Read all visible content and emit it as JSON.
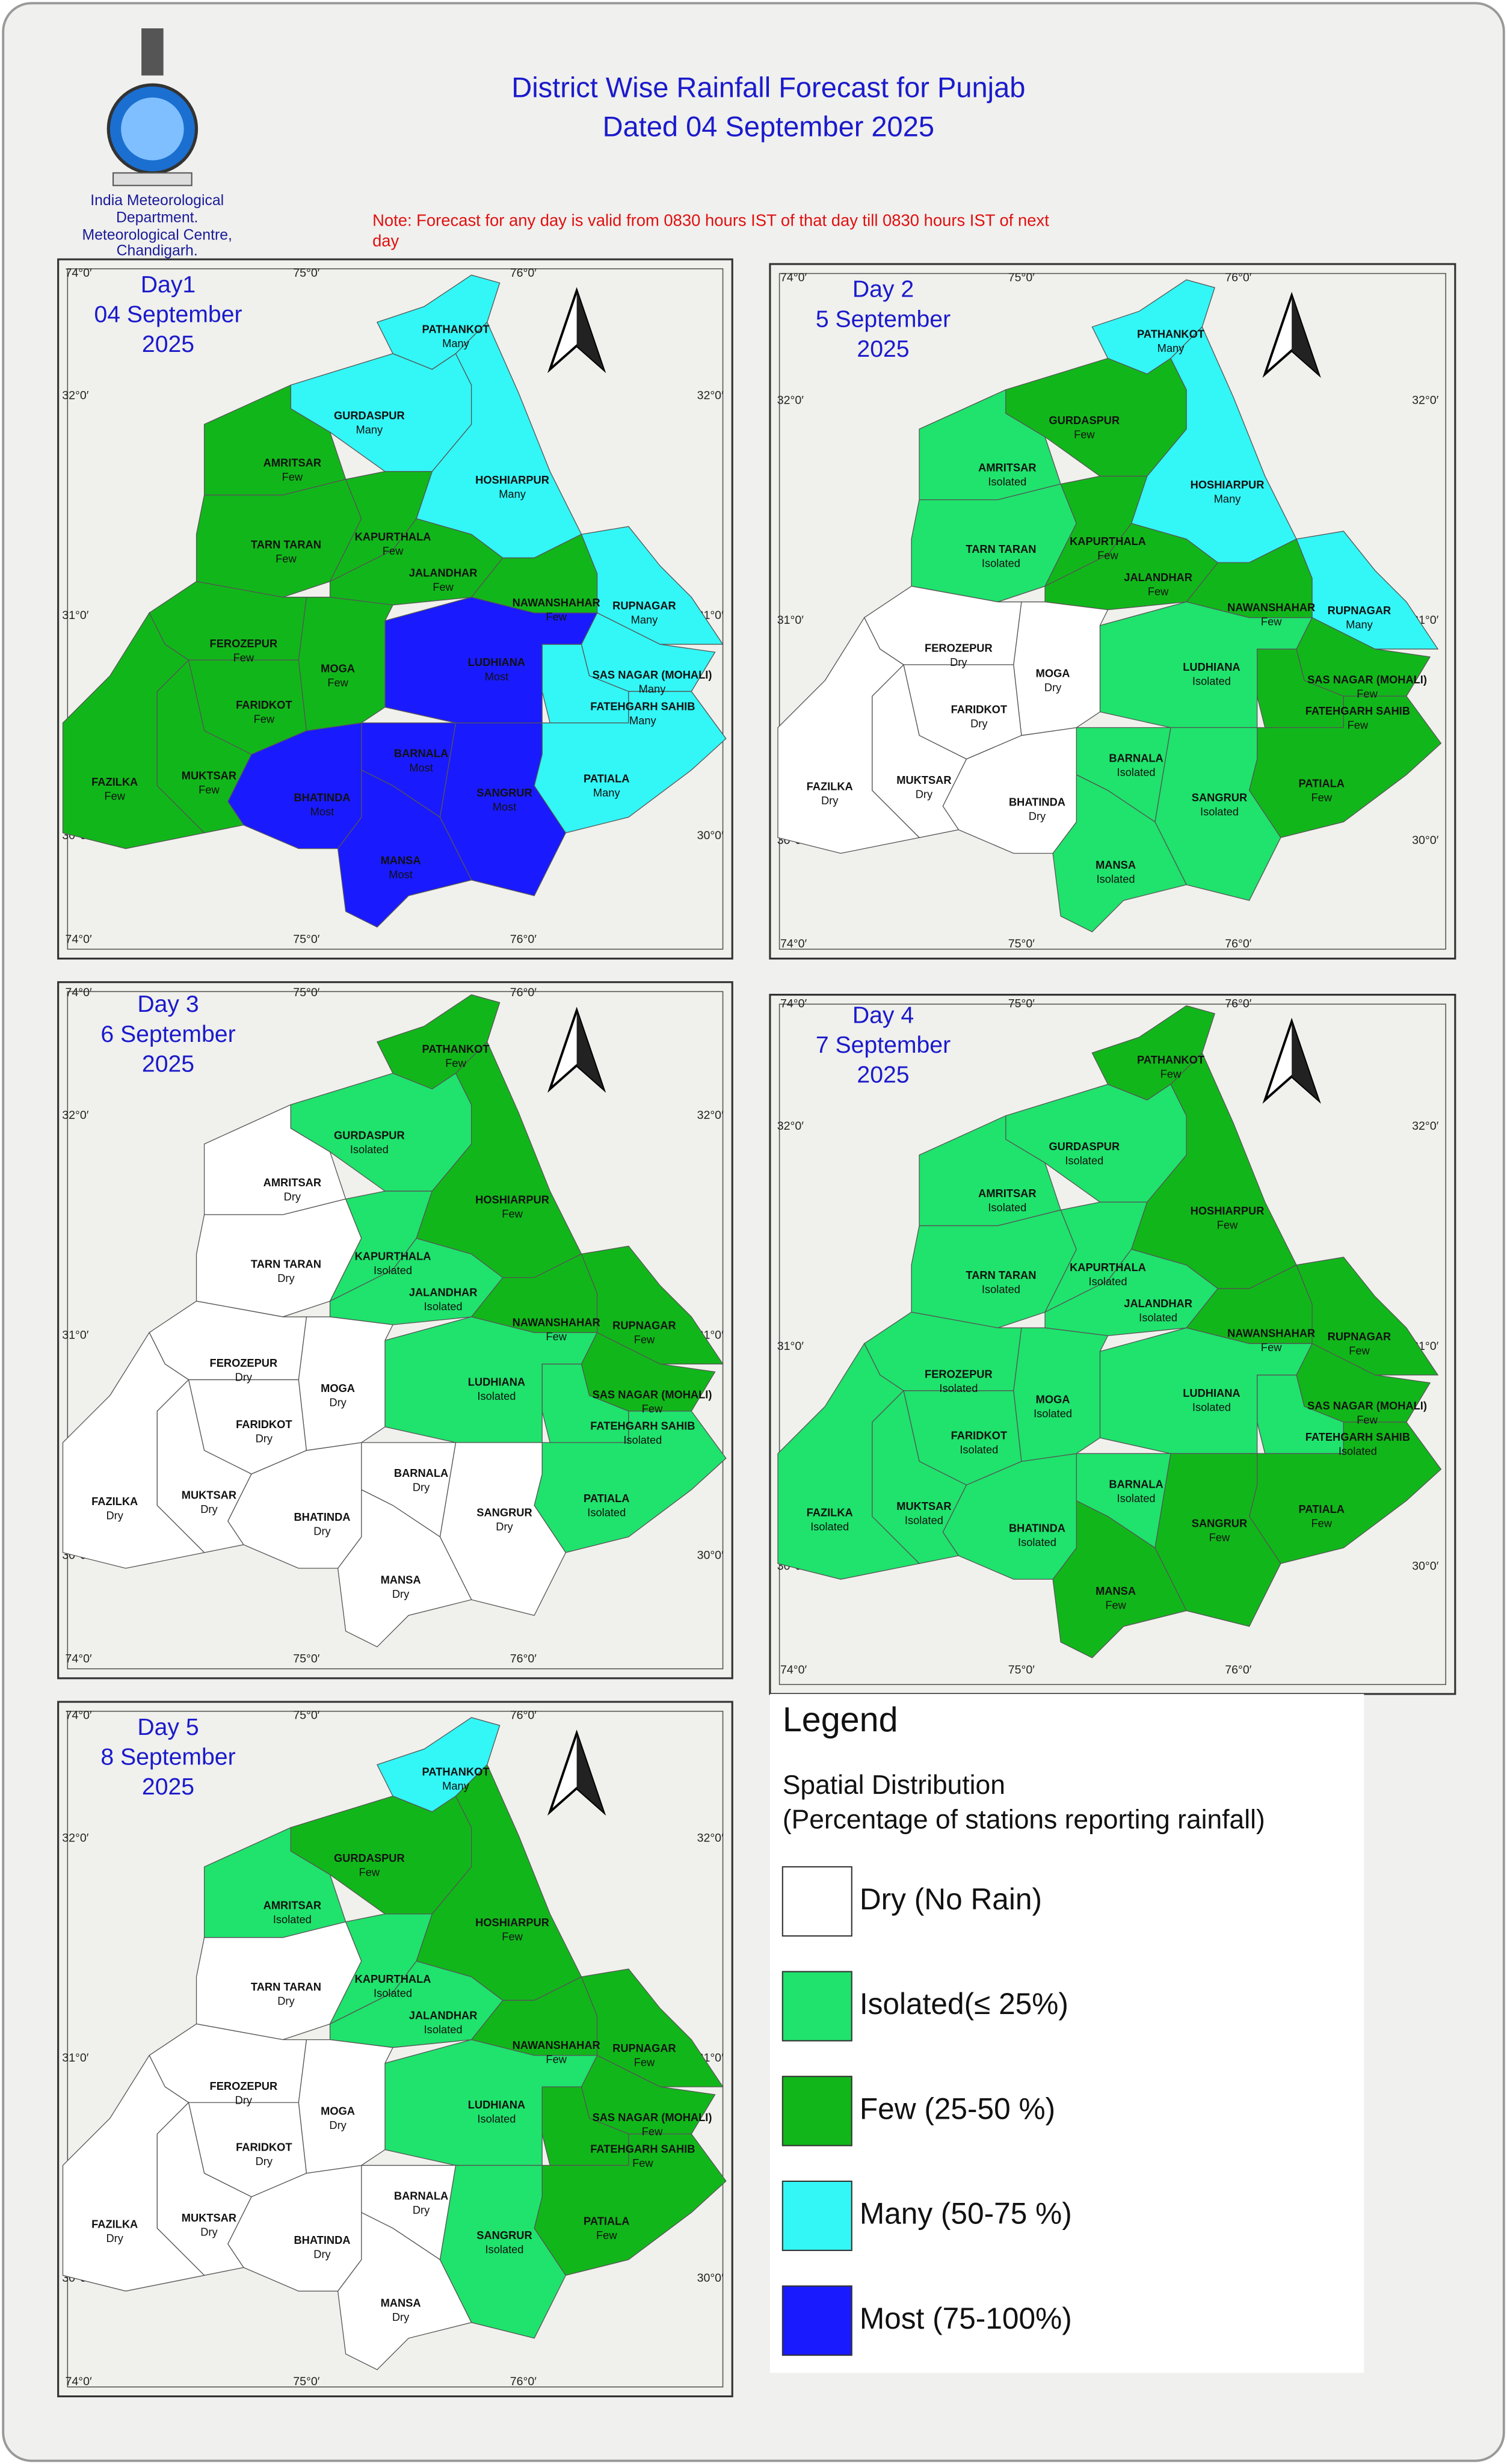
{
  "header": {
    "title_lines": [
      "District Wise Rainfall Forecast for Punjab",
      "Dated 04 September 2025"
    ],
    "org_lines": [
      "India Meteorological",
      "Department.",
      "Meteorological Centre,",
      "Chandigarh."
    ],
    "note_lines": [
      "Note: Forecast for any day is valid from 0830 hours IST of that day till 0830 hours IST of next",
      "day"
    ]
  },
  "graticule": {
    "lon": [
      "74°0′",
      "75°0′",
      "76°0′"
    ],
    "lat": [
      "32°0′",
      "31°0′",
      "30°0′"
    ]
  },
  "maps": [
    {
      "title_lines": [
        "Day1",
        "04 September",
        "2025"
      ],
      "districts": [
        {
          "name": "PATHANKOT",
          "category": "Many"
        },
        {
          "name": "GURDASPUR",
          "category": "Many"
        },
        {
          "name": "AMRITSAR",
          "category": "Few"
        },
        {
          "name": "TARN TARAN",
          "category": "Few"
        },
        {
          "name": "KAPURTHALA",
          "category": "Few"
        },
        {
          "name": "JALANDHAR",
          "category": "Few"
        },
        {
          "name": "HOSHIARPUR",
          "category": "Many"
        },
        {
          "name": "NAWANSHAHAR",
          "category": "Few"
        },
        {
          "name": "RUPNAGAR",
          "category": "Many"
        },
        {
          "name": "SAS NAGAR (MOHALI)",
          "category": "Many"
        },
        {
          "name": "FATEHGARH SAHIB",
          "category": "Many"
        },
        {
          "name": "LUDHIANA",
          "category": "Most"
        },
        {
          "name": "PATIALA",
          "category": "Many"
        },
        {
          "name": "SANGRUR",
          "category": "Most"
        },
        {
          "name": "BARNALA",
          "category": "Most"
        },
        {
          "name": "MANSA",
          "category": "Most"
        },
        {
          "name": "BHATINDA",
          "category": "Most"
        },
        {
          "name": "MOGA",
          "category": "Few"
        },
        {
          "name": "FEROZEPUR",
          "category": "Few"
        },
        {
          "name": "FARIDKOT",
          "category": "Few"
        },
        {
          "name": "MUKTSAR",
          "category": "Few"
        },
        {
          "name": "FAZILKA",
          "category": "Few"
        }
      ]
    },
    {
      "title_lines": [
        "Day 2",
        "5 September",
        "2025"
      ],
      "districts": [
        {
          "name": "PATHANKOT",
          "category": "Many"
        },
        {
          "name": "GURDASPUR",
          "category": "Few"
        },
        {
          "name": "AMRITSAR",
          "category": "Isolated"
        },
        {
          "name": "TARN TARAN",
          "category": "Isolated"
        },
        {
          "name": "KAPURTHALA",
          "category": "Few"
        },
        {
          "name": "JALANDHAR",
          "category": "Few"
        },
        {
          "name": "HOSHIARPUR",
          "category": "Many"
        },
        {
          "name": "NAWANSHAHAR",
          "category": "Few"
        },
        {
          "name": "RUPNAGAR",
          "category": "Many"
        },
        {
          "name": "SAS NAGAR (MOHALI)",
          "category": "Few"
        },
        {
          "name": "FATEHGARH SAHIB",
          "category": "Few"
        },
        {
          "name": "LUDHIANA",
          "category": "Isolated"
        },
        {
          "name": "PATIALA",
          "category": "Few"
        },
        {
          "name": "SANGRUR",
          "category": "Isolated"
        },
        {
          "name": "BARNALA",
          "category": "Isolated"
        },
        {
          "name": "MANSA",
          "category": "Isolated"
        },
        {
          "name": "BHATINDA",
          "category": "Dry"
        },
        {
          "name": "MOGA",
          "category": "Dry"
        },
        {
          "name": "FEROZEPUR",
          "category": "Dry"
        },
        {
          "name": "FARIDKOT",
          "category": "Dry"
        },
        {
          "name": "MUKTSAR",
          "category": "Dry"
        },
        {
          "name": "FAZILKA",
          "category": "Dry"
        }
      ]
    },
    {
      "title_lines": [
        "Day 3",
        "6 September",
        "2025"
      ],
      "districts": [
        {
          "name": "PATHANKOT",
          "category": "Few"
        },
        {
          "name": "GURDASPUR",
          "category": "Isolated"
        },
        {
          "name": "AMRITSAR",
          "category": "Dry"
        },
        {
          "name": "TARN TARAN",
          "category": "Dry"
        },
        {
          "name": "KAPURTHALA",
          "category": "Isolated"
        },
        {
          "name": "JALANDHAR",
          "category": "Isolated"
        },
        {
          "name": "HOSHIARPUR",
          "category": "Few"
        },
        {
          "name": "NAWANSHAHAR",
          "category": "Few"
        },
        {
          "name": "RUPNAGAR",
          "category": "Few"
        },
        {
          "name": "SAS NAGAR (MOHALI)",
          "category": "Few"
        },
        {
          "name": "FATEHGARH SAHIB",
          "category": "Isolated"
        },
        {
          "name": "LUDHIANA",
          "category": "Isolated"
        },
        {
          "name": "PATIALA",
          "category": "Isolated"
        },
        {
          "name": "SANGRUR",
          "category": "Dry"
        },
        {
          "name": "BARNALA",
          "category": "Dry"
        },
        {
          "name": "MANSA",
          "category": "Dry"
        },
        {
          "name": "BHATINDA",
          "category": "Dry"
        },
        {
          "name": "MOGA",
          "category": "Dry"
        },
        {
          "name": "FEROZEPUR",
          "category": "Dry"
        },
        {
          "name": "FARIDKOT",
          "category": "Dry"
        },
        {
          "name": "MUKTSAR",
          "category": "Dry"
        },
        {
          "name": "FAZILKA",
          "category": "Dry"
        }
      ]
    },
    {
      "title_lines": [
        "Day 4",
        "7 September",
        "2025"
      ],
      "districts": [
        {
          "name": "PATHANKOT",
          "category": "Few"
        },
        {
          "name": "GURDASPUR",
          "category": "Isolated"
        },
        {
          "name": "AMRITSAR",
          "category": "Isolated"
        },
        {
          "name": "TARN TARAN",
          "category": "Isolated"
        },
        {
          "name": "KAPURTHALA",
          "category": "Isolated"
        },
        {
          "name": "JALANDHAR",
          "category": "Isolated"
        },
        {
          "name": "HOSHIARPUR",
          "category": "Few"
        },
        {
          "name": "NAWANSHAHAR",
          "category": "Few"
        },
        {
          "name": "RUPNAGAR",
          "category": "Few"
        },
        {
          "name": "SAS NAGAR (MOHALI)",
          "category": "Few"
        },
        {
          "name": "FATEHGARH SAHIB",
          "category": "Isolated"
        },
        {
          "name": "LUDHIANA",
          "category": "Isolated"
        },
        {
          "name": "PATIALA",
          "category": "Few"
        },
        {
          "name": "SANGRUR",
          "category": "Few"
        },
        {
          "name": "BARNALA",
          "category": "Isolated"
        },
        {
          "name": "MANSA",
          "category": "Few"
        },
        {
          "name": "BHATINDA",
          "category": "Isolated"
        },
        {
          "name": "MOGA",
          "category": "Isolated"
        },
        {
          "name": "FEROZEPUR",
          "category": "Isolated"
        },
        {
          "name": "FARIDKOT",
          "category": "Isolated"
        },
        {
          "name": "MUKTSAR",
          "category": "Isolated"
        },
        {
          "name": "FAZILKA",
          "category": "Isolated"
        }
      ]
    },
    {
      "title_lines": [
        "Day 5",
        "8 September",
        "2025"
      ],
      "districts": [
        {
          "name": "PATHANKOT",
          "category": "Many"
        },
        {
          "name": "GURDASPUR",
          "category": "Few"
        },
        {
          "name": "AMRITSAR",
          "category": "Isolated"
        },
        {
          "name": "TARN TARAN",
          "category": "Dry"
        },
        {
          "name": "KAPURTHALA",
          "category": "Isolated"
        },
        {
          "name": "JALANDHAR",
          "category": "Isolated"
        },
        {
          "name": "HOSHIARPUR",
          "category": "Few"
        },
        {
          "name": "NAWANSHAHAR",
          "category": "Few"
        },
        {
          "name": "RUPNAGAR",
          "category": "Few"
        },
        {
          "name": "SAS NAGAR (MOHALI)",
          "category": "Few"
        },
        {
          "name": "FATEHGARH SAHIB",
          "category": "Few"
        },
        {
          "name": "LUDHIANA",
          "category": "Isolated"
        },
        {
          "name": "PATIALA",
          "category": "Few"
        },
        {
          "name": "SANGRUR",
          "category": "Isolated"
        },
        {
          "name": "BARNALA",
          "category": "Dry"
        },
        {
          "name": "MANSA",
          "category": "Dry"
        },
        {
          "name": "BHATINDA",
          "category": "Dry"
        },
        {
          "name": "MOGA",
          "category": "Dry"
        },
        {
          "name": "FEROZEPUR",
          "category": "Dry"
        },
        {
          "name": "FARIDKOT",
          "category": "Dry"
        },
        {
          "name": "MUKTSAR",
          "category": "Dry"
        },
        {
          "name": "FAZILKA",
          "category": "Dry"
        }
      ]
    }
  ],
  "legend": {
    "title": "Legend",
    "subtitle_lines": [
      "Spatial Distribution",
      "(Percentage of stations reporting rainfall)"
    ],
    "items": [
      {
        "label": "Dry (No Rain)",
        "color": "#ffffff"
      },
      {
        "label": "Isolated(≤ 25%)",
        "color": "#1fe36c"
      },
      {
        "label": "Few (25-50 %)",
        "color": "#11b71a"
      },
      {
        "label": "Many (50-75 %)",
        "color": "#33f6f6"
      },
      {
        "label": "Most (75-100%)",
        "color": "#1a1aff"
      }
    ]
  }
}
